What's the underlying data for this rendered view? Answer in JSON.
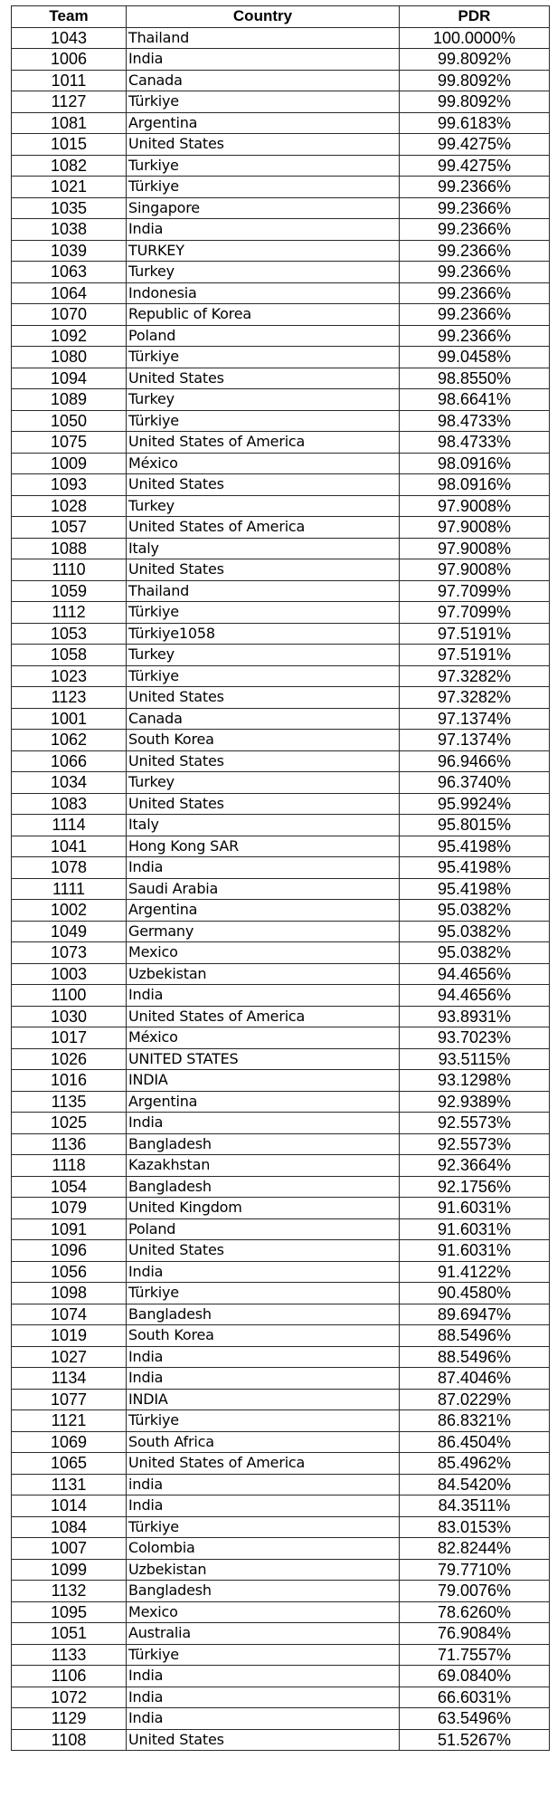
{
  "headers": {
    "team": "Team",
    "country": "Country",
    "pdr": "PDR"
  },
  "rows": [
    [
      "1043",
      "Thailand",
      "100.0000%"
    ],
    [
      "1006",
      "India",
      "99.8092%"
    ],
    [
      "1011",
      "Canada",
      "99.8092%"
    ],
    [
      "1127",
      "Türkiye",
      "99.8092%"
    ],
    [
      "1081",
      "Argentina",
      "99.6183%"
    ],
    [
      "1015",
      "United States",
      "99.4275%"
    ],
    [
      "1082",
      "Turkiye",
      "99.4275%"
    ],
    [
      "1021",
      "Türkiye",
      "99.2366%"
    ],
    [
      "1035",
      "Singapore",
      "99.2366%"
    ],
    [
      "1038",
      "India",
      "99.2366%"
    ],
    [
      "1039",
      "TURKEY",
      "99.2366%"
    ],
    [
      "1063",
      "Turkey",
      "99.2366%"
    ],
    [
      "1064",
      "Indonesia",
      "99.2366%"
    ],
    [
      "1070",
      "Republic of Korea",
      "99.2366%"
    ],
    [
      "1092",
      "Poland",
      "99.2366%"
    ],
    [
      "1080",
      "Türkiye",
      "99.0458%"
    ],
    [
      "1094",
      "United States",
      "98.8550%"
    ],
    [
      "1089",
      "Turkey",
      "98.6641%"
    ],
    [
      "1050",
      "Türkiye",
      "98.4733%"
    ],
    [
      "1075",
      "United States of America",
      "98.4733%"
    ],
    [
      "1009",
      "México",
      "98.0916%"
    ],
    [
      "1093",
      "United States",
      "98.0916%"
    ],
    [
      "1028",
      "Turkey",
      "97.9008%"
    ],
    [
      "1057",
      "United States of America",
      "97.9008%"
    ],
    [
      "1088",
      "Italy",
      "97.9008%"
    ],
    [
      "1110",
      "United States",
      "97.9008%"
    ],
    [
      "1059",
      "Thailand",
      "97.7099%"
    ],
    [
      "1112",
      "Türkiye",
      "97.7099%"
    ],
    [
      "1053",
      "Türkiye1058",
      "97.5191%"
    ],
    [
      "1058",
      "Turkey",
      "97.5191%"
    ],
    [
      "1023",
      "Türkiye",
      "97.3282%"
    ],
    [
      "1123",
      "United States",
      "97.3282%"
    ],
    [
      "1001",
      "Canada",
      "97.1374%"
    ],
    [
      "1062",
      "South Korea",
      "97.1374%"
    ],
    [
      "1066",
      "United States",
      "96.9466%"
    ],
    [
      "1034",
      "Turkey",
      "96.3740%"
    ],
    [
      "1083",
      "United States",
      "95.9924%"
    ],
    [
      "1114",
      "Italy",
      "95.8015%"
    ],
    [
      "1041",
      "Hong Kong SAR",
      "95.4198%"
    ],
    [
      "1078",
      "India",
      "95.4198%"
    ],
    [
      "1111",
      "Saudi Arabia",
      "95.4198%"
    ],
    [
      "1002",
      "Argentina",
      "95.0382%"
    ],
    [
      "1049",
      "Germany",
      "95.0382%"
    ],
    [
      "1073",
      "Mexico",
      "95.0382%"
    ],
    [
      "1003",
      "Uzbekistan",
      "94.4656%"
    ],
    [
      "1100",
      "India",
      "94.4656%"
    ],
    [
      "1030",
      "United States of America",
      "93.8931%"
    ],
    [
      "1017",
      "México",
      "93.7023%"
    ],
    [
      "1026",
      "UNITED STATES",
      "93.5115%"
    ],
    [
      "1016",
      "INDIA",
      "93.1298%"
    ],
    [
      "1135",
      "Argentina",
      "92.9389%"
    ],
    [
      "1025",
      "India",
      "92.5573%"
    ],
    [
      "1136",
      "Bangladesh",
      "92.5573%"
    ],
    [
      "1118",
      "Kazakhstan",
      "92.3664%"
    ],
    [
      "1054",
      "Bangladesh",
      "92.1756%"
    ],
    [
      "1079",
      "United Kingdom",
      "91.6031%"
    ],
    [
      "1091",
      "Poland",
      "91.6031%"
    ],
    [
      "1096",
      "United States",
      "91.6031%"
    ],
    [
      "1056",
      "India",
      "91.4122%"
    ],
    [
      "1098",
      "Türkiye",
      "90.4580%"
    ],
    [
      "1074",
      "Bangladesh",
      "89.6947%"
    ],
    [
      "1019",
      "South Korea",
      "88.5496%"
    ],
    [
      "1027",
      "India",
      "88.5496%"
    ],
    [
      "1134",
      "India",
      "87.4046%"
    ],
    [
      "1077",
      "INDIA",
      "87.0229%"
    ],
    [
      "1121",
      "Türkiye",
      "86.8321%"
    ],
    [
      "1069",
      "South Africa",
      "86.4504%"
    ],
    [
      "1065",
      "United States of America",
      "85.4962%"
    ],
    [
      "1131",
      "india",
      "84.5420%"
    ],
    [
      "1014",
      "India",
      "84.3511%"
    ],
    [
      "1084",
      "Türkiye",
      "83.0153%"
    ],
    [
      "1007",
      "Colombia",
      "82.8244%"
    ],
    [
      "1099",
      "Uzbekistan",
      "79.7710%"
    ],
    [
      "1132",
      "Bangladesh",
      "79.0076%"
    ],
    [
      "1095",
      "Mexico",
      "78.6260%"
    ],
    [
      "1051",
      "Australia",
      "76.9084%"
    ],
    [
      "1133",
      "Türkiye",
      "71.7557%"
    ],
    [
      "1106",
      "India",
      "69.0840%"
    ],
    [
      "1072",
      "India",
      "66.6031%"
    ],
    [
      "1129",
      "India",
      "63.5496%"
    ],
    [
      "1108",
      "United States",
      "51.5267%"
    ]
  ]
}
